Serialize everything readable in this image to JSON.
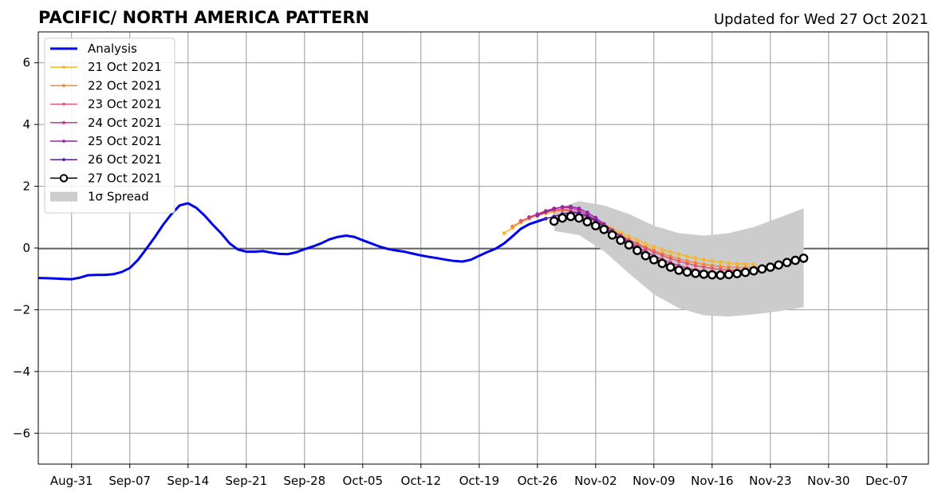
{
  "chart_data": {
    "type": "line",
    "title": "PACIFIC/ NORTH AMERICA PATTERN",
    "subtitle": "Updated for Wed 27 Oct 2021",
    "x_reference": "2021-08-31",
    "xlim": [
      "2021-08-27",
      "2021-12-12"
    ],
    "ylim": [
      -7,
      7
    ],
    "x_tick_labels": [
      {
        "date": "2021-08-31",
        "label": "Aug-31"
      },
      {
        "date": "2021-09-07",
        "label": "Sep-07"
      },
      {
        "date": "2021-09-14",
        "label": "Sep-14"
      },
      {
        "date": "2021-09-21",
        "label": "Sep-21"
      },
      {
        "date": "2021-09-28",
        "label": "Sep-28"
      },
      {
        "date": "2021-10-05",
        "label": "Oct-05"
      },
      {
        "date": "2021-10-12",
        "label": "Oct-12"
      },
      {
        "date": "2021-10-19",
        "label": "Oct-19"
      },
      {
        "date": "2021-10-26",
        "label": "Oct-26"
      },
      {
        "date": "2021-11-02",
        "label": "Nov-02"
      },
      {
        "date": "2021-11-09",
        "label": "Nov-09"
      },
      {
        "date": "2021-11-16",
        "label": "Nov-16"
      },
      {
        "date": "2021-11-23",
        "label": "Nov-23"
      },
      {
        "date": "2021-11-30",
        "label": "Nov-30"
      },
      {
        "date": "2021-12-07",
        "label": "Dec-07"
      }
    ],
    "y_ticks": [
      6,
      4,
      2,
      0,
      -2,
      -4,
      -6
    ],
    "y_tick_labels": [
      "6",
      "4",
      "2",
      "0",
      "−2",
      "−4",
      "−6"
    ],
    "grid": true,
    "legend_position": "top-left",
    "series": [
      {
        "name": "Analysis",
        "color": "#0000ee",
        "marker": "none",
        "x": [
          "2021-08-27",
          "2021-08-28",
          "2021-08-29",
          "2021-08-30",
          "2021-08-31",
          "2021-09-01",
          "2021-09-02",
          "2021-09-03",
          "2021-09-04",
          "2021-09-05",
          "2021-09-06",
          "2021-09-07",
          "2021-09-08",
          "2021-09-09",
          "2021-09-10",
          "2021-09-11",
          "2021-09-12",
          "2021-09-13",
          "2021-09-14",
          "2021-09-15",
          "2021-09-16",
          "2021-09-17",
          "2021-09-18",
          "2021-09-19",
          "2021-09-20",
          "2021-09-21",
          "2021-09-22",
          "2021-09-23",
          "2021-09-24",
          "2021-09-25",
          "2021-09-26",
          "2021-09-27",
          "2021-09-28",
          "2021-09-29",
          "2021-09-30",
          "2021-10-01",
          "2021-10-02",
          "2021-10-03",
          "2021-10-04",
          "2021-10-05",
          "2021-10-06",
          "2021-10-07",
          "2021-10-08",
          "2021-10-09",
          "2021-10-10",
          "2021-10-11",
          "2021-10-12",
          "2021-10-13",
          "2021-10-14",
          "2021-10-15",
          "2021-10-16",
          "2021-10-17",
          "2021-10-18",
          "2021-10-19",
          "2021-10-20",
          "2021-10-21",
          "2021-10-22",
          "2021-10-23",
          "2021-10-24",
          "2021-10-25",
          "2021-10-26",
          "2021-10-27"
        ],
        "values": [
          -0.97,
          -0.98,
          -0.99,
          -1.0,
          -1.01,
          -0.96,
          -0.88,
          -0.87,
          -0.87,
          -0.85,
          -0.78,
          -0.65,
          -0.38,
          -0.02,
          0.35,
          0.75,
          1.1,
          1.38,
          1.45,
          1.3,
          1.05,
          0.75,
          0.47,
          0.15,
          -0.05,
          -0.12,
          -0.12,
          -0.1,
          -0.15,
          -0.19,
          -0.2,
          -0.14,
          -0.04,
          0.05,
          0.15,
          0.28,
          0.36,
          0.4,
          0.36,
          0.25,
          0.15,
          0.05,
          -0.03,
          -0.08,
          -0.12,
          -0.18,
          -0.24,
          -0.29,
          -0.33,
          -0.38,
          -0.42,
          -0.44,
          -0.38,
          -0.25,
          -0.13,
          -0.02,
          0.15,
          0.38,
          0.62,
          0.77,
          0.86,
          0.95
        ]
      },
      {
        "name": "21 Oct 2021",
        "color": "#f5b731",
        "marker": "dot",
        "x": [
          "2021-10-22",
          "2021-10-23",
          "2021-10-24",
          "2021-10-25",
          "2021-10-26",
          "2021-10-27",
          "2021-10-28",
          "2021-10-29",
          "2021-10-30",
          "2021-10-31",
          "2021-11-01",
          "2021-11-02",
          "2021-11-03",
          "2021-11-04",
          "2021-11-05",
          "2021-11-06",
          "2021-11-07",
          "2021-11-08",
          "2021-11-09",
          "2021-11-10",
          "2021-11-11",
          "2021-11-12",
          "2021-11-13",
          "2021-11-14",
          "2021-11-15",
          "2021-11-16",
          "2021-11-17",
          "2021-11-18",
          "2021-11-19",
          "2021-11-20",
          "2021-11-21"
        ],
        "values": [
          0.48,
          0.65,
          0.83,
          0.95,
          1.05,
          1.12,
          1.18,
          1.22,
          1.2,
          1.12,
          1.02,
          0.9,
          0.78,
          0.63,
          0.5,
          0.38,
          0.26,
          0.14,
          0.04,
          -0.05,
          -0.13,
          -0.2,
          -0.27,
          -0.33,
          -0.38,
          -0.42,
          -0.46,
          -0.49,
          -0.51,
          -0.52,
          -0.52
        ]
      },
      {
        "name": "22 Oct 2021",
        "color": "#f28a3a",
        "marker": "dot",
        "x": [
          "2021-10-23",
          "2021-10-24",
          "2021-10-25",
          "2021-10-26",
          "2021-10-27",
          "2021-10-28",
          "2021-10-29",
          "2021-10-30",
          "2021-10-31",
          "2021-11-01",
          "2021-11-02",
          "2021-11-03",
          "2021-11-04",
          "2021-11-05",
          "2021-11-06",
          "2021-11-07",
          "2021-11-08",
          "2021-11-09",
          "2021-11-10",
          "2021-11-11",
          "2021-11-12",
          "2021-11-13",
          "2021-11-14",
          "2021-11-15",
          "2021-11-16",
          "2021-11-17",
          "2021-11-18",
          "2021-11-19",
          "2021-11-20",
          "2021-11-21",
          "2021-11-22"
        ],
        "values": [
          0.7,
          0.85,
          0.97,
          1.07,
          1.15,
          1.2,
          1.22,
          1.18,
          1.1,
          0.98,
          0.85,
          0.71,
          0.56,
          0.42,
          0.28,
          0.15,
          0.03,
          -0.08,
          -0.18,
          -0.27,
          -0.35,
          -0.42,
          -0.48,
          -0.53,
          -0.57,
          -0.6,
          -0.62,
          -0.63,
          -0.63,
          -0.62,
          -0.6
        ]
      },
      {
        "name": "23 Oct 2021",
        "color": "#e0587a",
        "marker": "dot",
        "x": [
          "2021-10-24",
          "2021-10-25",
          "2021-10-26",
          "2021-10-27",
          "2021-10-28",
          "2021-10-29",
          "2021-10-30",
          "2021-10-31",
          "2021-11-01",
          "2021-11-02",
          "2021-11-03",
          "2021-11-04",
          "2021-11-05",
          "2021-11-06",
          "2021-11-07",
          "2021-11-08",
          "2021-11-09",
          "2021-11-10",
          "2021-11-11",
          "2021-11-12",
          "2021-11-13",
          "2021-11-14",
          "2021-11-15",
          "2021-11-16",
          "2021-11-17",
          "2021-11-18",
          "2021-11-19",
          "2021-11-20",
          "2021-11-21",
          "2021-11-22",
          "2021-11-23"
        ],
        "values": [
          0.88,
          0.98,
          1.08,
          1.17,
          1.23,
          1.25,
          1.22,
          1.14,
          1.02,
          0.88,
          0.73,
          0.57,
          0.41,
          0.26,
          0.12,
          -0.01,
          -0.13,
          -0.24,
          -0.34,
          -0.43,
          -0.5,
          -0.57,
          -0.62,
          -0.66,
          -0.69,
          -0.71,
          -0.72,
          -0.72,
          -0.7,
          -0.68,
          -0.64
        ]
      },
      {
        "name": "24 Oct 2021",
        "color": "#c1368f",
        "marker": "dot",
        "x": [
          "2021-10-25",
          "2021-10-26",
          "2021-10-27",
          "2021-10-28",
          "2021-10-29",
          "2021-10-30",
          "2021-10-31",
          "2021-11-01",
          "2021-11-02",
          "2021-11-03",
          "2021-11-04",
          "2021-11-05",
          "2021-11-06",
          "2021-11-07",
          "2021-11-08",
          "2021-11-09",
          "2021-11-10",
          "2021-11-11",
          "2021-11-12",
          "2021-11-13",
          "2021-11-14",
          "2021-11-15",
          "2021-11-16",
          "2021-11-17",
          "2021-11-18",
          "2021-11-19",
          "2021-11-20",
          "2021-11-21",
          "2021-11-22",
          "2021-11-23",
          "2021-11-24"
        ],
        "values": [
          1.0,
          1.1,
          1.2,
          1.28,
          1.32,
          1.3,
          1.22,
          1.08,
          0.92,
          0.74,
          0.56,
          0.38,
          0.2,
          0.04,
          -0.11,
          -0.25,
          -0.37,
          -0.48,
          -0.57,
          -0.65,
          -0.71,
          -0.76,
          -0.79,
          -0.81,
          -0.82,
          -0.82,
          -0.8,
          -0.77,
          -0.73,
          -0.68,
          -0.62
        ]
      },
      {
        "name": "25 Oct 2021",
        "color": "#9425a8",
        "marker": "dot",
        "x": [
          "2021-10-26",
          "2021-10-27",
          "2021-10-28",
          "2021-10-29",
          "2021-10-30",
          "2021-10-31",
          "2021-11-01",
          "2021-11-02",
          "2021-11-03",
          "2021-11-04",
          "2021-11-05",
          "2021-11-06",
          "2021-11-07",
          "2021-11-08",
          "2021-11-09",
          "2021-11-10",
          "2021-11-11",
          "2021-11-12",
          "2021-11-13",
          "2021-11-14",
          "2021-11-15",
          "2021-11-16",
          "2021-11-17",
          "2021-11-18",
          "2021-11-19",
          "2021-11-20",
          "2021-11-21",
          "2021-11-22",
          "2021-11-23",
          "2021-11-24",
          "2021-11-25"
        ],
        "values": [
          1.05,
          1.17,
          1.27,
          1.33,
          1.34,
          1.28,
          1.15,
          0.98,
          0.78,
          0.57,
          0.36,
          0.16,
          -0.02,
          -0.19,
          -0.34,
          -0.47,
          -0.58,
          -0.67,
          -0.74,
          -0.79,
          -0.83,
          -0.85,
          -0.86,
          -0.86,
          -0.84,
          -0.81,
          -0.77,
          -0.72,
          -0.66,
          -0.59,
          -0.51
        ]
      },
      {
        "name": "26 Oct 2021",
        "color": "#5c1aa8",
        "marker": "dot",
        "x": [
          "2021-10-27",
          "2021-10-28",
          "2021-10-29",
          "2021-10-30",
          "2021-10-31",
          "2021-11-01",
          "2021-11-02",
          "2021-11-03",
          "2021-11-04",
          "2021-11-05",
          "2021-11-06",
          "2021-11-07",
          "2021-11-08",
          "2021-11-09",
          "2021-11-10",
          "2021-11-11",
          "2021-11-12",
          "2021-11-13",
          "2021-11-14",
          "2021-11-15",
          "2021-11-16",
          "2021-11-17",
          "2021-11-18",
          "2021-11-19",
          "2021-11-20",
          "2021-11-21",
          "2021-11-22",
          "2021-11-23",
          "2021-11-24",
          "2021-11-25",
          "2021-11-26"
        ],
        "values": [
          0.95,
          1.02,
          1.1,
          1.15,
          1.13,
          1.03,
          0.88,
          0.69,
          0.48,
          0.27,
          0.07,
          -0.11,
          -0.27,
          -0.41,
          -0.53,
          -0.63,
          -0.71,
          -0.77,
          -0.81,
          -0.84,
          -0.85,
          -0.85,
          -0.84,
          -0.81,
          -0.77,
          -0.72,
          -0.66,
          -0.59,
          -0.51,
          -0.43,
          -0.35
        ]
      },
      {
        "name": "27 Oct 2021",
        "color": "#000000",
        "marker": "circle",
        "x": [
          "2021-10-28",
          "2021-10-29",
          "2021-10-30",
          "2021-10-31",
          "2021-11-01",
          "2021-11-02",
          "2021-11-03",
          "2021-11-04",
          "2021-11-05",
          "2021-11-06",
          "2021-11-07",
          "2021-11-08",
          "2021-11-09",
          "2021-11-10",
          "2021-11-11",
          "2021-11-12",
          "2021-11-13",
          "2021-11-14",
          "2021-11-15",
          "2021-11-16",
          "2021-11-17",
          "2021-11-18",
          "2021-11-19",
          "2021-11-20",
          "2021-11-21",
          "2021-11-22",
          "2021-11-23",
          "2021-11-24",
          "2021-11-25",
          "2021-11-26",
          "2021-11-27"
        ],
        "values": [
          0.87,
          0.97,
          1.02,
          0.97,
          0.85,
          0.72,
          0.6,
          0.42,
          0.25,
          0.1,
          -0.08,
          -0.25,
          -0.38,
          -0.5,
          -0.62,
          -0.72,
          -0.78,
          -0.82,
          -0.85,
          -0.87,
          -0.88,
          -0.86,
          -0.83,
          -0.79,
          -0.74,
          -0.68,
          -0.62,
          -0.55,
          -0.47,
          -0.4,
          -0.33
        ]
      }
    ],
    "spread": {
      "name": "1σ Spread",
      "color": "#cccccc",
      "x": [
        "2021-10-28",
        "2021-10-31",
        "2021-11-03",
        "2021-11-06",
        "2021-11-09",
        "2021-11-12",
        "2021-11-15",
        "2021-11-18",
        "2021-11-21",
        "2021-11-24",
        "2021-11-27"
      ],
      "upper": [
        1.25,
        1.52,
        1.38,
        1.1,
        0.72,
        0.48,
        0.4,
        0.48,
        0.68,
        0.98,
        1.28
      ],
      "lower": [
        0.55,
        0.42,
        -0.1,
        -0.82,
        -1.5,
        -1.95,
        -2.18,
        -2.22,
        -2.15,
        -2.05,
        -1.92
      ]
    },
    "legend": [
      "Analysis",
      "21 Oct 2021",
      "22 Oct 2021",
      "23 Oct 2021",
      "24 Oct 2021",
      "25 Oct 2021",
      "26 Oct 2021",
      "27 Oct 2021",
      "1σ Spread"
    ]
  }
}
